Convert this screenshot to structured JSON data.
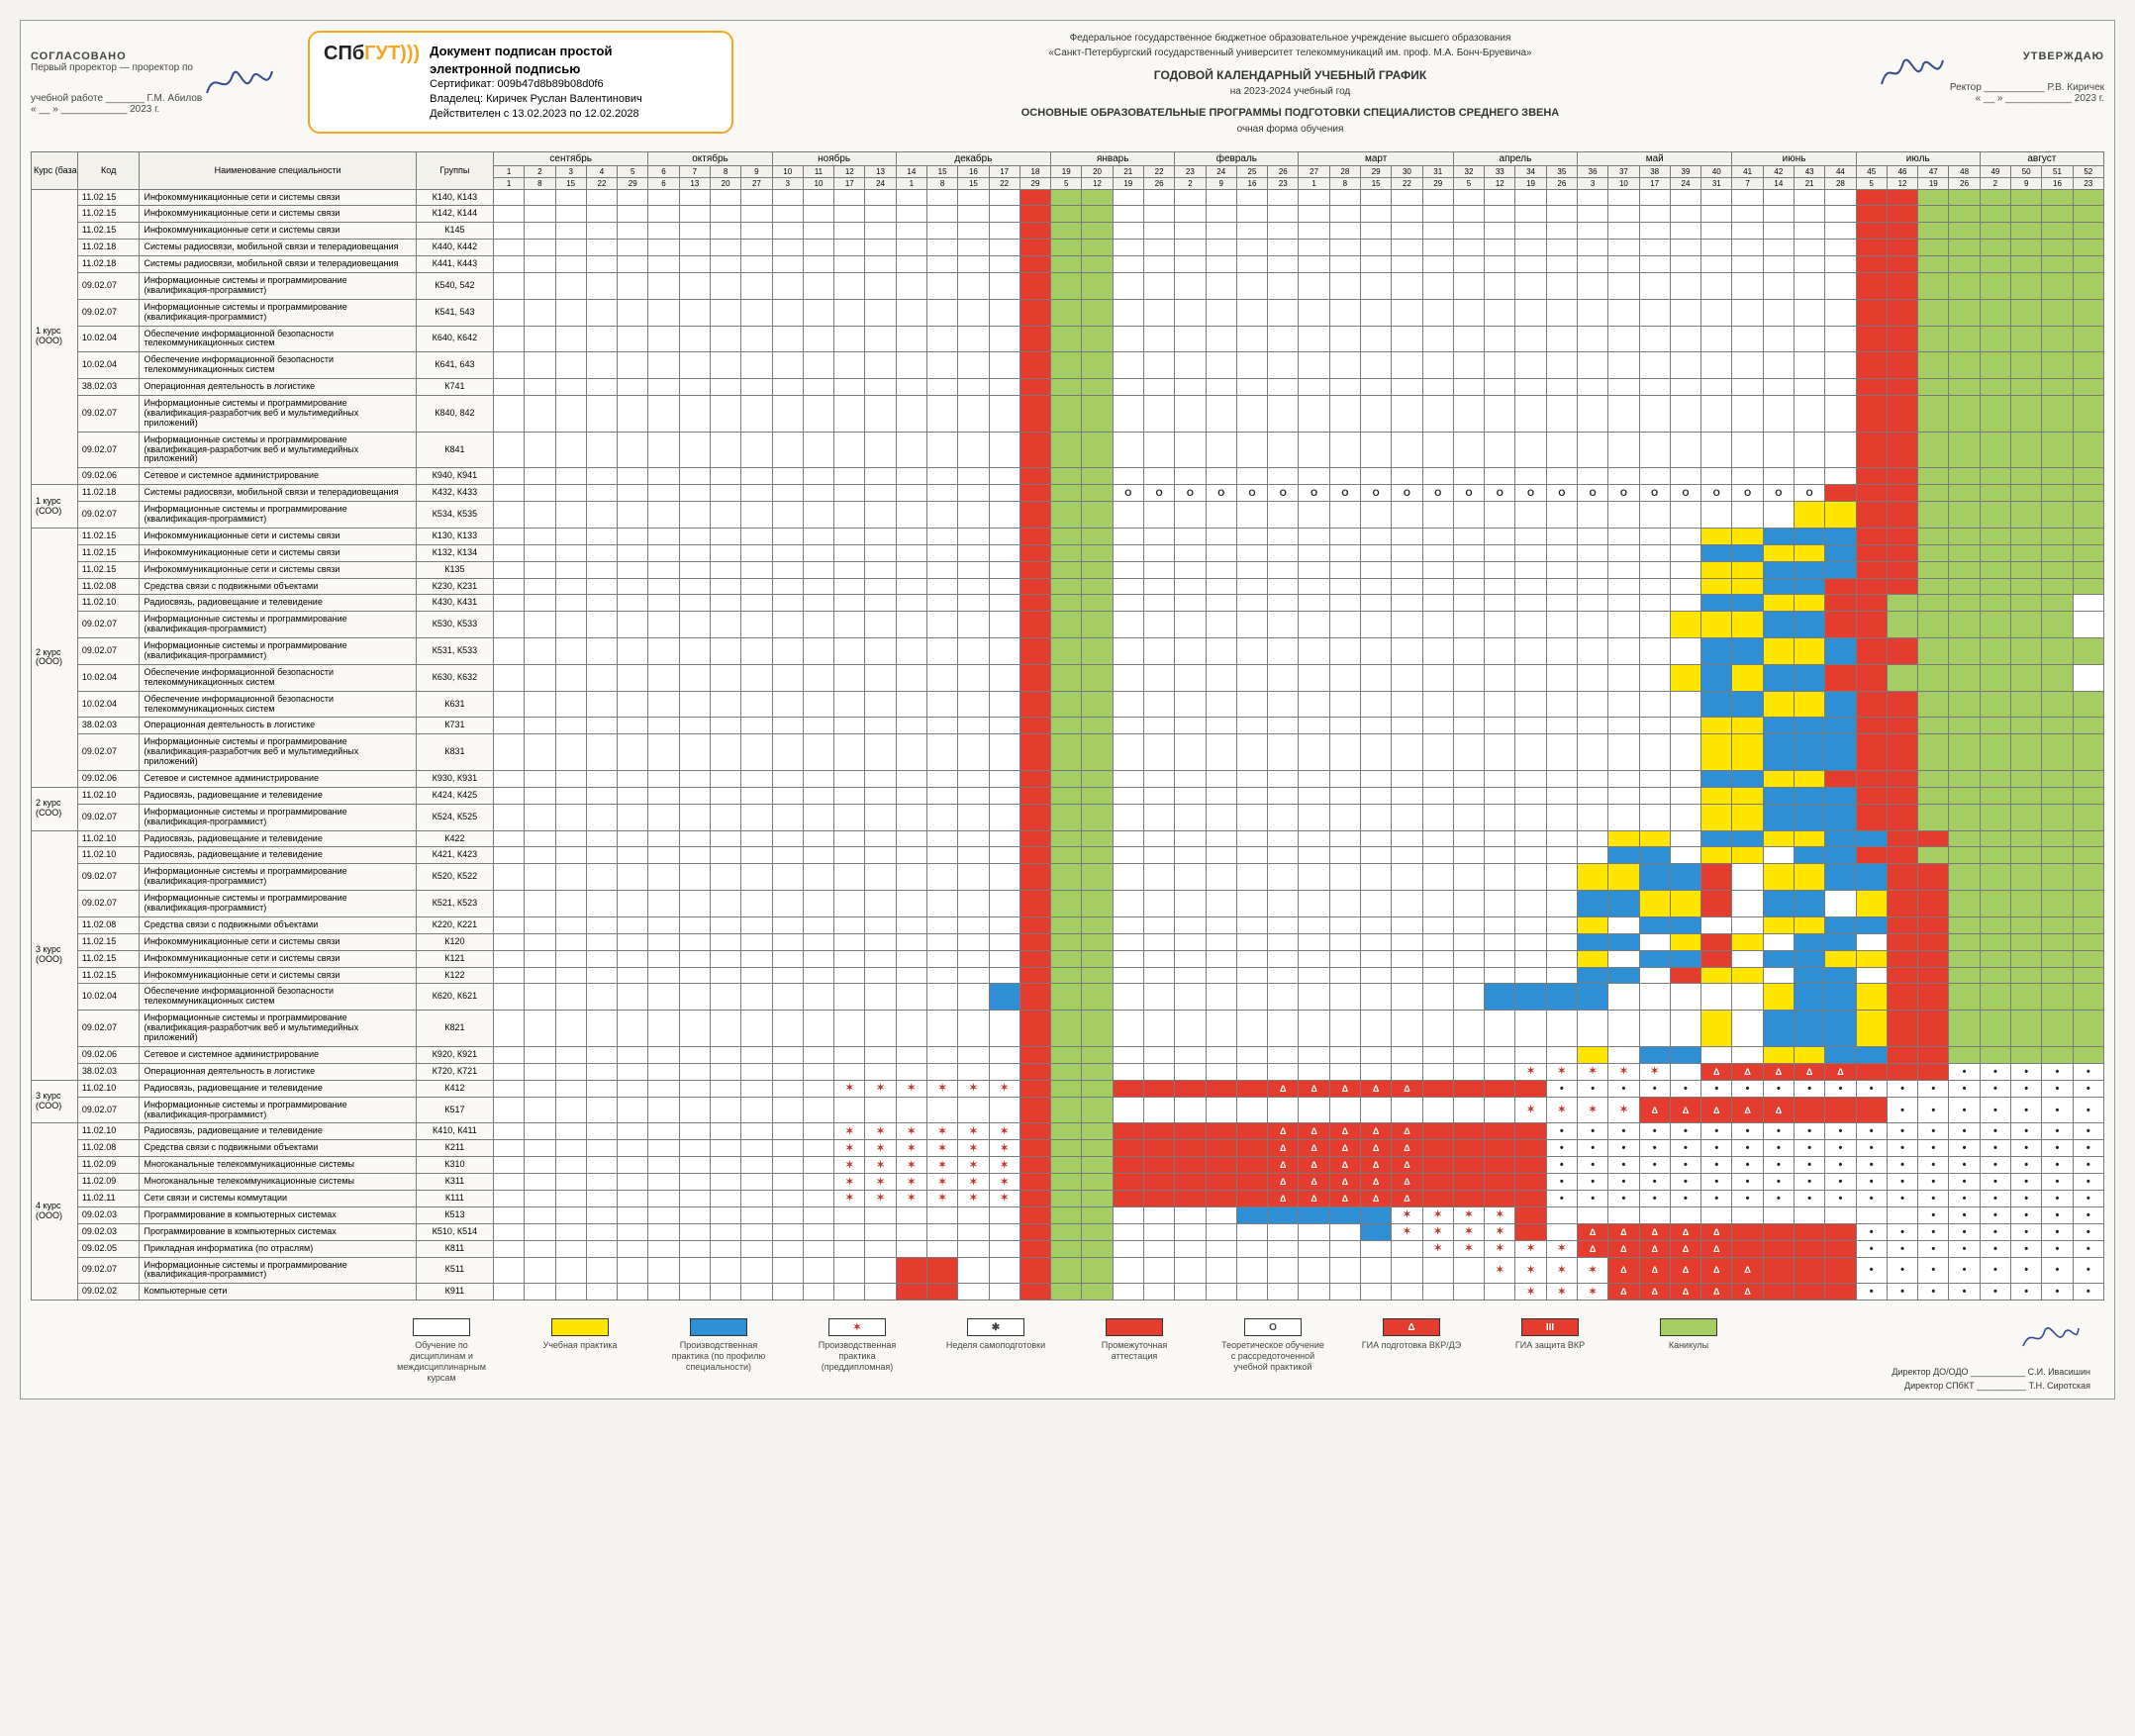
{
  "header": {
    "left_approve": {
      "title": "СОГЛАСОВАНО",
      "line1": "Первый проректор — проректор по",
      "line2": "учебной работе _______ Г.М. Абилов",
      "year": "« __ » ____________ 2023 г."
    },
    "cert": {
      "logo1": "СПб",
      "logo2": "ГУТ",
      "paren": ")))",
      "l1": "Документ подписан простой",
      "l2": "электронной подписью",
      "l3": "Сертификат: 009b47d8b89b08d0f6",
      "l4": "Владелец: Киричек Руслан Валентинович",
      "l5": "Действителен с 13.02.2023 по 12.02.2028"
    },
    "center": {
      "l1": "Федеральное государственное бюджетное образовательное учреждение высшего образования",
      "l2": "«Санкт-Петербургский государственный университет телекоммуникаций им. проф. М.А. Бонч-Бруевича»",
      "l3": "ГОДОВОЙ КАЛЕНДАРНЫЙ УЧЕБНЫЙ ГРАФИК",
      "l4": "на 2023-2024 учебный год",
      "l5": "ОСНОВНЫЕ ОБРАЗОВАТЕЛЬНЫЕ ПРОГРАММЫ ПОДГОТОВКИ СПЕЦИАЛИСТОВ СРЕДНЕГО ЗВЕНА",
      "l6": "очная форма обучения"
    },
    "right_approve": {
      "title": "УТВЕРЖДАЮ",
      "line1": "Ректор ___________ Р.В. Киричек",
      "year": "« __ » ____________ 2023 г."
    }
  },
  "columns": {
    "kurs": "Курс (база)",
    "code": "Код",
    "name": "Наименование специальности",
    "group": "Группы"
  },
  "months": [
    {
      "name": "сентябрь",
      "span": 5,
      "weeks": [
        1,
        2,
        3,
        4,
        5
      ],
      "dates": [
        "1",
        "8",
        "15",
        "22",
        "29"
      ]
    },
    {
      "name": "октябрь",
      "span": 4,
      "weeks": [
        6,
        7,
        8,
        9
      ],
      "dates": [
        "6",
        "13",
        "20",
        "27"
      ]
    },
    {
      "name": "ноябрь",
      "span": 4,
      "weeks": [
        10,
        11,
        12,
        13
      ],
      "dates": [
        "3",
        "10",
        "17",
        "24"
      ]
    },
    {
      "name": "декабрь",
      "span": 5,
      "weeks": [
        14,
        15,
        16,
        17,
        18
      ],
      "dates": [
        "1",
        "8",
        "15",
        "22",
        "29"
      ]
    },
    {
      "name": "январь",
      "span": 4,
      "weeks": [
        19,
        20,
        21,
        22
      ],
      "dates": [
        "5",
        "12",
        "19",
        "26"
      ]
    },
    {
      "name": "февраль",
      "span": 4,
      "weeks": [
        23,
        24,
        25,
        26
      ],
      "dates": [
        "2",
        "9",
        "16",
        "23"
      ]
    },
    {
      "name": "март",
      "span": 5,
      "weeks": [
        27,
        28,
        29,
        30,
        31
      ],
      "dates": [
        "1",
        "8",
        "15",
        "22",
        "29"
      ]
    },
    {
      "name": "апрель",
      "span": 4,
      "weeks": [
        32,
        33,
        34,
        35
      ],
      "dates": [
        "5",
        "12",
        "19",
        "26"
      ]
    },
    {
      "name": "май",
      "span": 5,
      "weeks": [
        36,
        37,
        38,
        39,
        40
      ],
      "dates": [
        "3",
        "10",
        "17",
        "24",
        "31"
      ]
    },
    {
      "name": "июнь",
      "span": 4,
      "weeks": [
        41,
        42,
        43,
        44
      ],
      "dates": [
        "7",
        "14",
        "21",
        "28"
      ]
    },
    {
      "name": "июль",
      "span": 4,
      "weeks": [
        45,
        46,
        47,
        48
      ],
      "dates": [
        "5",
        "12",
        "19",
        "26"
      ]
    },
    {
      "name": "август",
      "span": 4,
      "weeks": [
        49,
        50,
        51,
        52
      ],
      "dates": [
        "2",
        "9",
        "16",
        "23"
      ]
    }
  ],
  "colors": {
    "white": "#ffffff",
    "yellow": "#ffe600",
    "blue": "#2f8fd4",
    "green": "#a4cd64",
    "red": "#e43c2e",
    "grid": "#7a7a7a",
    "bg": "#faf8f4"
  },
  "kurs_groups": [
    {
      "kurs": "1 курс",
      "base": "(ООО)",
      "rows": [
        {
          "code": "11.02.15",
          "name": "Инфокоммуникационные сети и системы связи",
          "group": "К140, К143",
          "cells": "wwwwwwwwwwwwwwwwwrggwwwwwwwwwwwwwwwwwwwwwwwwrrgggggg"
        },
        {
          "code": "11.02.15",
          "name": "Инфокоммуникационные сети и системы связи",
          "group": "К142, К144",
          "cells": "wwwwwwwwwwwwwwwwwrggwwwwwwwwwwwwwwwwwwwwwwwwrrgggggg"
        },
        {
          "code": "11.02.15",
          "name": "Инфокоммуникационные сети и системы связи",
          "group": "К145",
          "cells": "wwwwwwwwwwwwwwwwwrggwwwwwwwwwwwwwwwwwwwwwwwwrrgggggg"
        },
        {
          "code": "11.02.18",
          "name": "Системы радиосвязи, мобильной связи и телерадиовещания",
          "group": "К440, К442",
          "cells": "wwwwwwwwwwwwwwwwwrggwwwwwwwwwwwwwwwwwwwwwwwwrrgggggg"
        },
        {
          "code": "11.02.18",
          "name": "Системы радиосвязи, мобильной связи и телерадиовещания",
          "group": "К441, К443",
          "cells": "wwwwwwwwwwwwwwwwwrggwwwwwwwwwwwwwwwwwwwwwwwwrrgggggg"
        },
        {
          "code": "09.02.07",
          "name": "Информационные системы и программирование (квалификация-программист)",
          "group": "К540, 542",
          "cells": "wwwwwwwwwwwwwwwwwrggwwwwwwwwwwwwwwwwwwwwwwwwrrgggggg"
        },
        {
          "code": "09.02.07",
          "name": "Информационные системы и программирование (квалификация-программист)",
          "group": "К541, 543",
          "cells": "wwwwwwwwwwwwwwwwwrggwwwwwwwwwwwwwwwwwwwwwwwwrrgggggg"
        },
        {
          "code": "10.02.04",
          "name": "Обеспечение информационной безопасности телекоммуникационных систем",
          "group": "К640, К642",
          "cells": "wwwwwwwwwwwwwwwwwrggwwwwwwwwwwwwwwwwwwwwwwwwrrgggggg"
        },
        {
          "code": "10.02.04",
          "name": "Обеспечение информационной безопасности телекоммуникационных систем",
          "group": "К641, 643",
          "cells": "wwwwwwwwwwwwwwwwwrggwwwwwwwwwwwwwwwwwwwwwwwwrrgggggg"
        },
        {
          "code": "38.02.03",
          "name": "Операционная деятельность в логистике",
          "group": "К741",
          "cells": "wwwwwwwwwwwwwwwwwrggwwwwwwwwwwwwwwwwwwwwwwwwrrgggggg"
        },
        {
          "code": "09.02.07",
          "name": "Информационные системы и программирование (квалификация-разработчик веб и мультимедийных приложений)",
          "group": "К840, 842",
          "cells": "wwwwwwwwwwwwwwwwwrggwwwwwwwwwwwwwwwwwwwwwwwwrrgggggg"
        },
        {
          "code": "09.02.07",
          "name": "Информационные системы и программирование (квалификация-разработчик веб и мультимедийных приложений)",
          "group": "К841",
          "cells": "wwwwwwwwwwwwwwwwwrggwwwwwwwwwwwwwwwwwwwwwwwwrrgggggg"
        },
        {
          "code": "09.02.06",
          "name": "Сетевое и системное администрирование",
          "group": "К940, К941",
          "cells": "wwwwwwwwwwwwwwwwwrggwwwwwwwwwwwwwwwwwwwwwwwwrrgggggg"
        }
      ]
    },
    {
      "kurs": "1 курс",
      "base": "(СОО)",
      "rows": [
        {
          "code": "11.02.18",
          "name": "Системы радиосвязи, мобильной связи и телерадиовещания",
          "group": "К432, К433",
          "cells": "wwwwwwwwwwwwwwwwwrggooooooooooooooooooooooorrrgggggg"
        },
        {
          "code": "09.02.07",
          "name": "Информационные системы и программирование (квалификация-программист)",
          "group": "К534, К535",
          "cells": "wwwwwwwwwwwwwwwwwrggwwwwwwwwwwwwwwwwwwwwwwyyrrgggggg"
        }
      ]
    },
    {
      "kurs": "2 курс",
      "base": "(ООО)",
      "rows": [
        {
          "code": "11.02.15",
          "name": "Инфокоммуникационные сети и системы связи",
          "group": "К130, К133",
          "cells": "wwwwwwwwwwwwwwwwwrggwwwwwwwwwwwwwwwwwwwyybbbrrgggggg"
        },
        {
          "code": "11.02.15",
          "name": "Инфокоммуникационные сети и системы связи",
          "group": "К132, К134",
          "cells": "wwwwwwwwwwwwwwwwwrggwwwwwwwwwwwwwwwwwwwbbyybrrgggggg"
        },
        {
          "code": "11.02.15",
          "name": "Инфокоммуникационные сети и системы связи",
          "group": "К135",
          "cells": "wwwwwwwwwwwwwwwwwrggwwwwwwwwwwwwwwwwwwwyybbbrrgggggg"
        },
        {
          "code": "11.02.08",
          "name": "Средства связи с подвижными объектами",
          "group": "К230, К231",
          "cells": "wwwwwwwwwwwwwwwwwrggwwwwwwwwwwwwwwwwwwwyybbrrrgggggg"
        },
        {
          "code": "11.02.10",
          "name": "Радиосвязь, радиовещание и телевидение",
          "group": "К430, К431",
          "cells": "wwwwwwwwwwwwwwwwwrggwwwwwwwwwwwwwwwwwwwbbyyrrgggggg "
        },
        {
          "code": "09.02.07",
          "name": "Информационные системы и программирование (квалификация-программист)",
          "group": "К530, К533",
          "cells": "wwwwwwwwwwwwwwwwwrggwwwwwwwwwwwwwwwwwwyyybbrrgggggg "
        },
        {
          "code": "09.02.07",
          "name": "Информационные системы и программирование (квалификация-программист)",
          "group": "К531, К533",
          "cells": "wwwwwwwwwwwwwwwwwrggwwwwwwwwwwwwwwwwwwwbbyybrrgggggg"
        },
        {
          "code": "10.02.04",
          "name": "Обеспечение информационной безопасности телекоммуникационных систем",
          "group": "К630, К632",
          "cells": "wwwwwwwwwwwwwwwwwrggwwwwwwwwwwwwwwwwwwybybbrrgggggg "
        },
        {
          "code": "10.02.04",
          "name": "Обеспечение информационной безопасности телекоммуникационных систем",
          "group": "К631",
          "cells": "wwwwwwwwwwwwwwwwwrggwwwwwwwwwwwwwwwwwwwbbyybrrgggggg"
        },
        {
          "code": "38.02.03",
          "name": "Операционная деятельность в логистике",
          "group": "К731",
          "cells": "wwwwwwwwwwwwwwwwwrggwwwwwwwwwwwwwwwwwwwyybbbrrgggggg"
        },
        {
          "code": "09.02.07",
          "name": "Информационные системы и программирование (квалификация-разработчик веб и мультимедийных приложений)",
          "group": "К831",
          "cells": "wwwwwwwwwwwwwwwwwrggwwwwwwwwwwwwwwwwwwwyybbbrrgggggg"
        },
        {
          "code": "09.02.06",
          "name": "Сетевое и системное администрирование",
          "group": "К930, К931",
          "cells": "wwwwwwwwwwwwwwwwwrggwwwwwwwwwwwwwwwwwwwbbyyrrrgggggg"
        }
      ]
    },
    {
      "kurs": "2 курс",
      "base": "(СОО)",
      "rows": [
        {
          "code": "11.02.10",
          "name": "Радиосвязь, радиовещание и телевидение",
          "group": "К424, К425",
          "cells": "wwwwwwwwwwwwwwwwwrggwwwwwwwwwwwwwwwwwwwyybbbrrgggggg"
        },
        {
          "code": "09.02.07",
          "name": "Информационные системы и программирование (квалификация-программист)",
          "group": "К524, К525",
          "cells": "wwwwwwwwwwwwwwwwwrggwwwwwwwwwwwwwwwwwwwyybbbrrgggggg"
        }
      ]
    },
    {
      "kurs": "3 курс",
      "base": "(ООО)",
      "rows": [
        {
          "code": "11.02.10",
          "name": "Радиосвязь, радиовещание и телевидение",
          "group": "К422",
          "cells": "wwwwwwwwwwwwwwwwwrggwwwwwwwwwwwwwwwwyywbbyybbrrgggggg"
        },
        {
          "code": "11.02.10",
          "name": "Радиосвязь, радиовещание и телевидение",
          "group": "К421, К423",
          "cells": "wwwwwwwwwwwwwwwwwrggwwwwwwwwwwwwwwwwbbwyywbbrrgggggg"
        },
        {
          "code": "09.02.07",
          "name": "Информационные системы и программирование (квалификация-программист)",
          "group": "К520, К522",
          "cells": "wwwwwwwwwwwwwwwwwrggwwwwwwwwwwwwwwwyybbrwyybbrrgggggg"
        },
        {
          "code": "09.02.07",
          "name": "Информационные системы и программирование (квалификация-программист)",
          "group": "К521, К523",
          "cells": "wwwwwwwwwwwwwwwwwrggwwwwwwwwwwwwwwwbbyyrwbbwyrrgggggg"
        },
        {
          "code": "11.02.08",
          "name": "Средства связи с подвижными объектами",
          "group": "К220, К221",
          "cells": "wwwwwwwwwwwwwwwwwrggwwwwwwwwwwwwwwwywbbwwyybbrrgggggg"
        },
        {
          "code": "11.02.15",
          "name": "Инфокоммуникационные сети и системы связи",
          "group": "К120",
          "cells": "wwwwwwwwwwwwwwwwwrggwwwwwwwwwwwwwwwbbwyrywbbwrrgggggg"
        },
        {
          "code": "11.02.15",
          "name": "Инфокоммуникационные сети и системы связи",
          "group": "К121",
          "cells": "wwwwwwwwwwwwwwwwwrggwwwwwwwwwwwwwwwywbbrwbbyyrrgggggg"
        },
        {
          "code": "11.02.15",
          "name": "Инфокоммуникационные сети и системы связи",
          "group": "К122",
          "cells": "wwwwwwwwwwwwwwwwwrggwwwwwwwwwwwwwwwbbwryywbbwrrgggggg"
        },
        {
          "code": "10.02.04",
          "name": "Обеспечение информационной безопасности телекоммуникационных систем",
          "group": "К620, К621",
          "cells": "wwwwwwwwwwwwwwwwbrggwwwwwwwwwwwwbbbbwwwwwybbyrrgggggg"
        },
        {
          "code": "09.02.07",
          "name": "Информационные системы и программирование (квалификация-разработчик веб и мультимедийных приложений)",
          "group": "К821",
          "cells": "wwwwwwwwwwwwwwwwwrggwwwwwwwwwwwwwwwwwwwywbbbyrrgggggg"
        },
        {
          "code": "09.02.06",
          "name": "Сетевое и системное администрирование",
          "group": "К920, К921",
          "cells": "wwwwwwwwwwwwwwwwwrggwwwwwwwwwwwwwwwywbbwwyybbrrgggggg"
        },
        {
          "code": "38.02.03",
          "name": "Операционная деятельность в логистике",
          "group": "К720, К721",
          "cells": "wwwwwwwwwwwwwwwwwrggwwwwwwwwwwwwwxxxxxwAAAAArrr······"
        }
      ]
    },
    {
      "kurs": "3 курс",
      "base": "(СОО)",
      "rows": [
        {
          "code": "11.02.10",
          "name": "Радиосвязь, радиовещание и телевидение",
          "group": "К412",
          "cells": "wwwwwwwwwwwxxxxxxrggrrrrrAAAAArrrr···················"
        },
        {
          "code": "09.02.07",
          "name": "Информационные системы и программирование (квалификация-программист)",
          "group": "К517",
          "cells": "wwwwwwwwwwwwwwwwwrggwwwwwwwwwwwwwxxxxAAAAArrr········"
        }
      ]
    },
    {
      "kurs": "4 курс",
      "base": "(ООО)",
      "rows": [
        {
          "code": "11.02.10",
          "name": "Радиосвязь, радиовещание и телевидение",
          "group": "К410, К411",
          "cells": "wwwwwwwwwwwxxxxxxrggrrrrrAAAAArrrr···················"
        },
        {
          "code": "11.02.08",
          "name": "Средства связи с подвижными объектами",
          "group": "К211",
          "cells": "wwwwwwwwwwwxxxxxxrggrrrrrAAAAArrrr···················"
        },
        {
          "code": "11.02.09",
          "name": "Многоканальные телекоммуникационные системы",
          "group": "К310",
          "cells": "wwwwwwwwwwwxxxxxxrggrrrrrAAAAArrrr···················"
        },
        {
          "code": "11.02.09",
          "name": "Многоканальные телекоммуникационные системы",
          "group": "К311",
          "cells": "wwwwwwwwwwwxxxxxxrggrrrrrAAAAArrrr···················"
        },
        {
          "code": "11.02.11",
          "name": "Сети связи и системы коммутации",
          "group": "К111",
          "cells": "wwwwwwwwwwwxxxxxxrggrrrrrAAAAArrrr···················"
        },
        {
          "code": "09.02.03",
          "name": "Программирование в компьютерных системах",
          "group": "К513",
          "cells": "wwwwwwwwwwwwwwwwwrggwwwwbbbbbxxxxrwwwwwwwwwwww·······"
        },
        {
          "code": "09.02.03",
          "name": "Программирование в компьютерных системах",
          "group": "К510, К514",
          "cells": "wwwwwwwwwwwwwwwwwrggwwwwwwwwbxxxxrwAAAAArrrr·········"
        },
        {
          "code": "09.02.05",
          "name": "Прикладная информатика (по отраслям)",
          "group": "К811",
          "cells": "wwwwwwwwwwwwwwwwwrggwwwwwwwwwwxxxxxAAAAArrrr·········"
        },
        {
          "code": "09.02.07",
          "name": "Информационные системы и программирование (квалификация-программист)",
          "group": "К511",
          "cells": "wwwwwwwwwwwwwrrwwrggwwwwwwwwwwwwxxxxAAAAArrr·········"
        },
        {
          "code": "09.02.02",
          "name": "Компьютерные сети",
          "group": "К911",
          "cells": "wwwwwwwwwwwwwrrwwrggwwwwwwwwwwwwwxxxAAAAArrr·········"
        }
      ]
    }
  ],
  "legend": [
    {
      "color": "white",
      "sym": "",
      "label": "Обучение по дисциплинам и междисциплинарным курсам"
    },
    {
      "color": "yellow",
      "sym": "",
      "label": "Учебная практика"
    },
    {
      "color": "blue",
      "sym": "",
      "label": "Производственная практика (по профилю специальности)"
    },
    {
      "color": "white",
      "sym": "✶",
      "label": "Производственная практика (преддипломная)",
      "symcolor": "#c0392b"
    },
    {
      "color": "white",
      "sym": "✱",
      "label": "Неделя самоподготовки"
    },
    {
      "color": "red",
      "sym": "",
      "label": "Промежуточная аттестация"
    },
    {
      "color": "white",
      "sym": "О",
      "label": "Теоретическое обучение с рассредоточенной учебной практикой"
    },
    {
      "color": "red",
      "sym": "Δ",
      "label": "ГИА подготовка ВКР/ДЭ",
      "symcolor": "#fff"
    },
    {
      "color": "red",
      "sym": "III",
      "label": "ГИА защита ВКР",
      "symcolor": "#fff"
    },
    {
      "color": "green",
      "sym": "",
      "label": "Каникулы"
    }
  ],
  "footer_sign": {
    "l1": "Директор ДО/ОДО ___________ С.И. Ивасишин",
    "l2": "Директор СПбКТ __________ Т.Н. Сиротская"
  }
}
